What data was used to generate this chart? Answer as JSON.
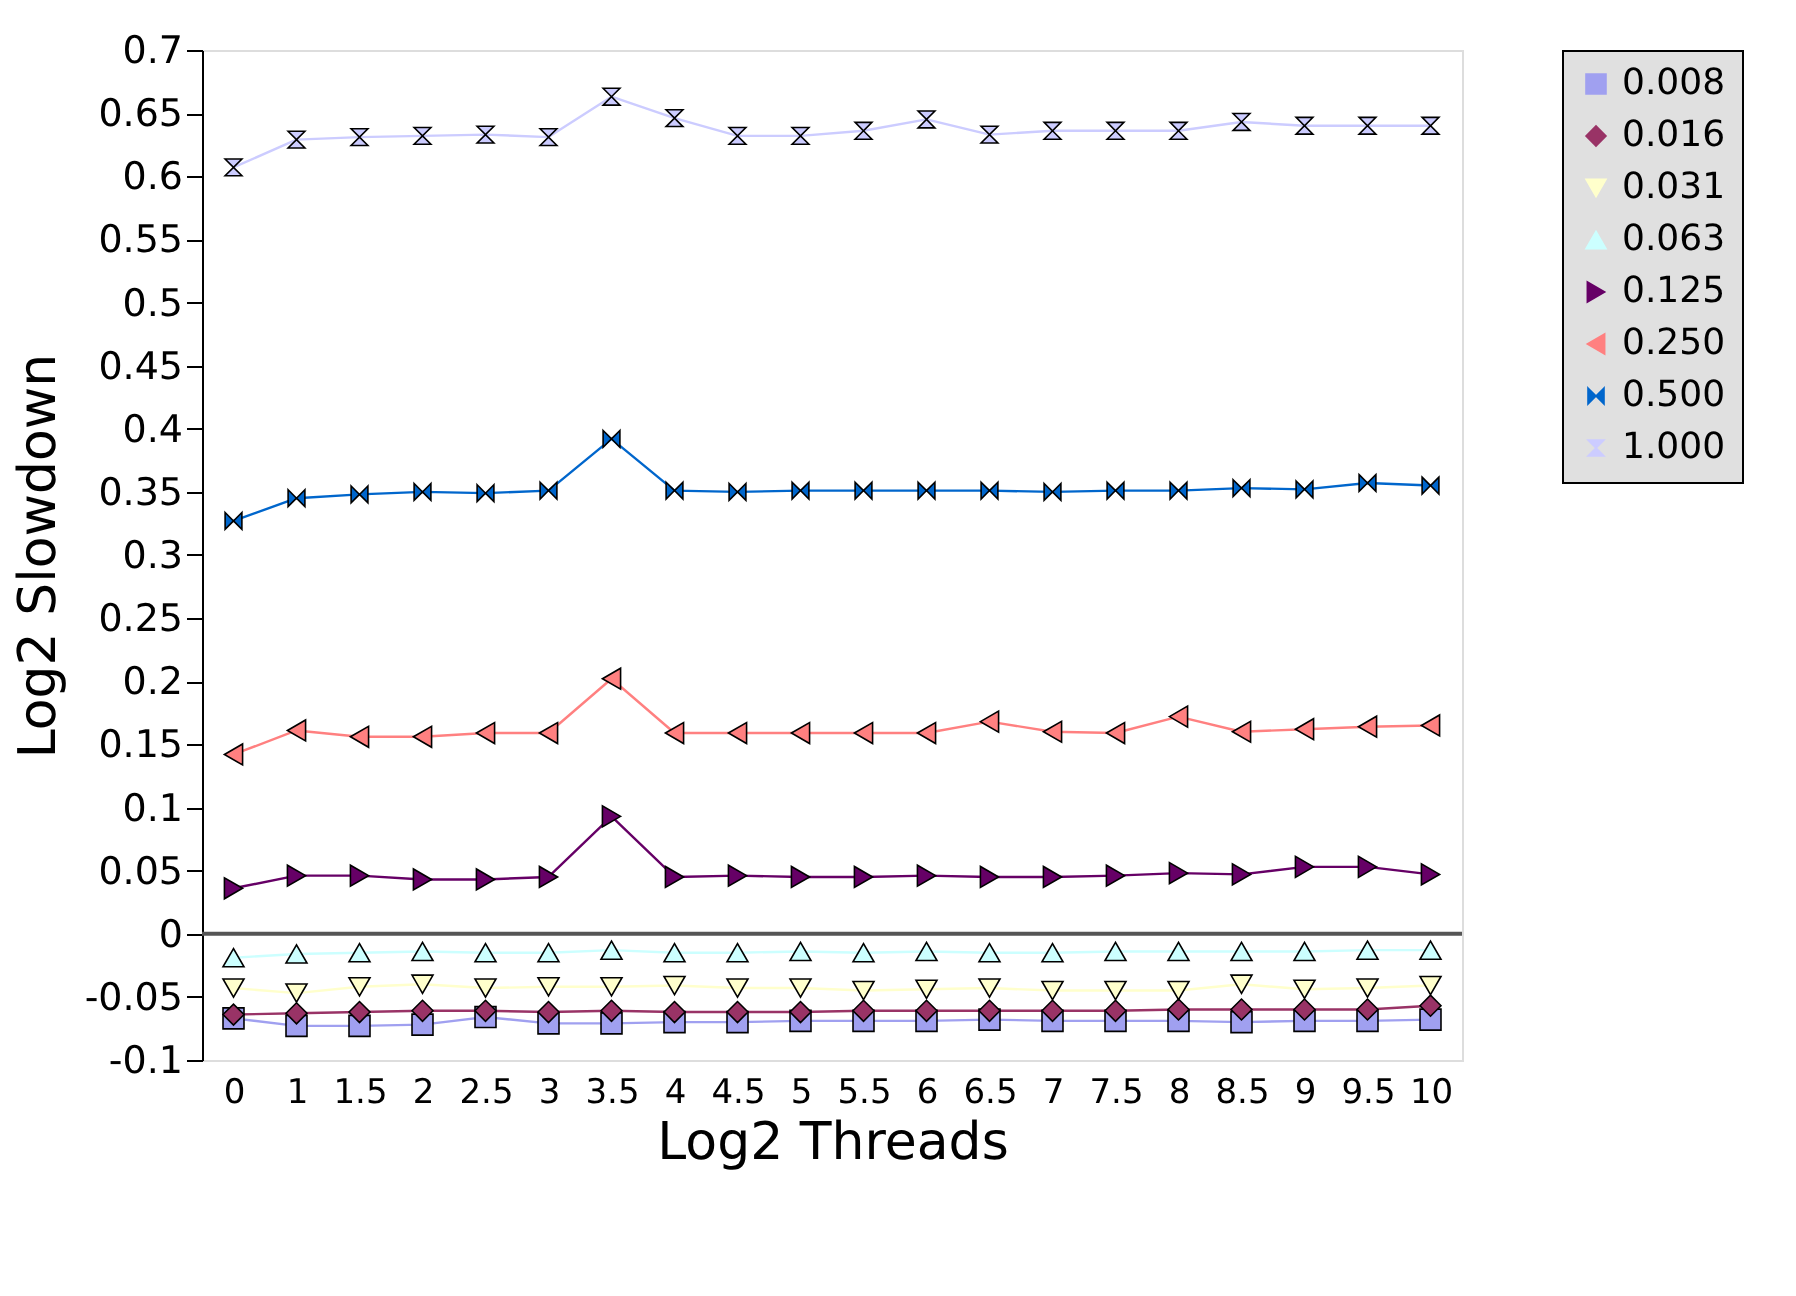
{
  "chart_data": {
    "type": "line",
    "xlabel": "Log2 Threads",
    "ylabel": "Log2 Slowdown",
    "categories": [
      "0",
      "1",
      "1.5",
      "2",
      "2.5",
      "3",
      "3.5",
      "4",
      "4.5",
      "5",
      "5.5",
      "6",
      "6.5",
      "7",
      "7.5",
      "8",
      "8.5",
      "9",
      "9.5",
      "10"
    ],
    "ylim": [
      -0.1,
      0.7
    ],
    "yticks": [
      -0.1,
      -0.05,
      0,
      0.05,
      0.1,
      0.15,
      0.2,
      0.25,
      0.3,
      0.35,
      0.4,
      0.45,
      0.5,
      0.55,
      0.6,
      0.65,
      0.7
    ],
    "grid": false,
    "legend": "right",
    "line_style": "solid",
    "ref_lines": [
      {
        "axis": "y",
        "value": 0,
        "color": "#555555"
      }
    ],
    "series": [
      {
        "name": "0.008",
        "color": "#a0a0f0",
        "marker": "square",
        "values": [
          -0.067,
          -0.073,
          -0.073,
          -0.072,
          -0.066,
          -0.071,
          -0.071,
          -0.07,
          -0.07,
          -0.069,
          -0.069,
          -0.069,
          -0.068,
          -0.069,
          -0.069,
          -0.069,
          -0.07,
          -0.069,
          -0.069,
          -0.068
        ]
      },
      {
        "name": "0.016",
        "color": "#993366",
        "marker": "diamond",
        "values": [
          -0.064,
          -0.063,
          -0.062,
          -0.061,
          -0.061,
          -0.062,
          -0.061,
          -0.062,
          -0.062,
          -0.062,
          -0.061,
          -0.061,
          -0.061,
          -0.061,
          -0.061,
          -0.06,
          -0.06,
          -0.06,
          -0.06,
          -0.057
        ]
      },
      {
        "name": "0.031",
        "color": "#ffffcc",
        "marker": "triangle",
        "values": [
          -0.043,
          -0.047,
          -0.042,
          -0.04,
          -0.043,
          -0.042,
          -0.042,
          -0.041,
          -0.043,
          -0.043,
          -0.045,
          -0.044,
          -0.043,
          -0.045,
          -0.045,
          -0.045,
          -0.04,
          -0.044,
          -0.043,
          -0.041
        ]
      },
      {
        "name": "0.063",
        "color": "#ccffff",
        "marker": "triangle",
        "values": [
          -0.019,
          -0.016,
          -0.015,
          -0.014,
          -0.015,
          -0.015,
          -0.013,
          -0.015,
          -0.015,
          -0.014,
          -0.015,
          -0.014,
          -0.015,
          -0.015,
          -0.014,
          -0.014,
          -0.014,
          -0.014,
          -0.013,
          -0.013
        ]
      },
      {
        "name": "0.125",
        "color": "#660066",
        "marker": "triangle",
        "values": [
          0.036,
          0.046,
          0.046,
          0.043,
          0.043,
          0.045,
          0.093,
          0.045,
          0.046,
          0.045,
          0.045,
          0.046,
          0.045,
          0.045,
          0.046,
          0.048,
          0.047,
          0.053,
          0.053,
          0.047
        ]
      },
      {
        "name": "0.250",
        "color": "#ff8080",
        "marker": "triangle",
        "values": [
          0.142,
          0.161,
          0.156,
          0.156,
          0.159,
          0.159,
          0.202,
          0.159,
          0.159,
          0.159,
          0.159,
          0.159,
          0.168,
          0.16,
          0.159,
          0.172,
          0.16,
          0.162,
          0.164,
          0.165
        ]
      },
      {
        "name": "0.500",
        "color": "#0066cc",
        "marker": "triangle",
        "values": [
          0.327,
          0.345,
          0.348,
          0.35,
          0.349,
          0.351,
          0.392,
          0.351,
          0.35,
          0.351,
          0.351,
          0.351,
          0.351,
          0.35,
          0.351,
          0.351,
          0.353,
          0.352,
          0.357,
          0.355
        ]
      },
      {
        "name": "1.000",
        "color": "#ccccff",
        "marker": "triangle",
        "values": [
          0.607,
          0.629,
          0.631,
          0.632,
          0.633,
          0.631,
          0.663,
          0.646,
          0.632,
          0.632,
          0.636,
          0.645,
          0.633,
          0.636,
          0.636,
          0.636,
          0.643,
          0.64,
          0.64,
          0.64
        ]
      }
    ]
  }
}
